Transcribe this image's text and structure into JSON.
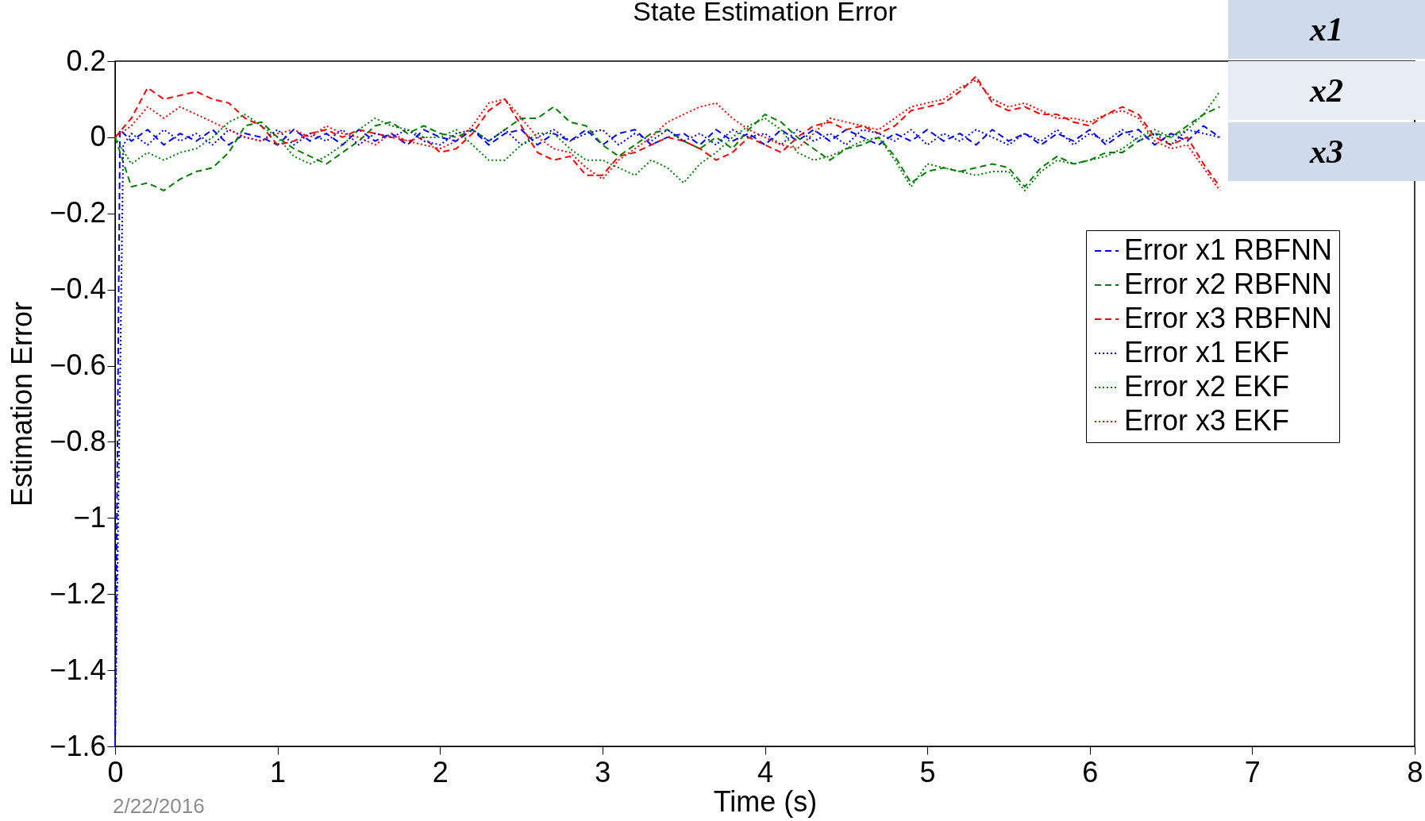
{
  "chart_data": {
    "type": "line",
    "title": "State Estimation Error",
    "xlabel": "Time (s)",
    "ylabel": "Estimation Error",
    "xlim": [
      0,
      8
    ],
    "xticks": [
      0,
      1,
      2,
      3,
      4,
      5,
      6,
      7,
      8
    ],
    "ylim": [
      -1.6,
      0.2
    ],
    "yticks": [
      0.2,
      0,
      -0.2,
      -0.4,
      -0.6,
      -0.8,
      -1,
      -1.2,
      -1.4,
      -1.6
    ],
    "grid": false,
    "legend": "top right",
    "annotations": [
      "x1",
      "x2",
      "x3",
      "2/22/2016"
    ],
    "x": [
      0,
      0.1,
      0.2,
      0.3,
      0.4,
      0.5,
      0.6,
      0.7,
      0.8,
      0.9,
      1,
      1.1,
      1.2,
      1.3,
      1.4,
      1.5,
      1.6,
      1.7,
      1.8,
      1.9,
      2,
      2.1,
      2.2,
      2.3,
      2.4,
      2.5,
      2.6,
      2.7,
      2.8,
      2.9,
      3,
      3.1,
      3.2,
      3.3,
      3.4,
      3.5,
      3.6,
      3.7,
      3.8,
      3.9,
      4,
      4.1,
      4.2,
      4.3,
      4.4,
      4.5,
      4.6,
      4.7,
      4.8,
      4.9,
      5,
      5.1,
      5.2,
      5.3,
      5.4,
      5.5,
      5.6,
      5.7,
      5.8,
      5.9,
      6,
      6.1,
      6.2,
      6.3,
      6.4,
      6.5,
      6.6,
      6.7,
      6.8
    ],
    "series": [
      {
        "name": "Error x1 RBFNN",
        "color": "#0000ff",
        "line_style": "dashed",
        "x": [
          0,
          0.03,
          0.1,
          0.2,
          0.3,
          0.4,
          0.5,
          0.6,
          0.7,
          0.8,
          0.9,
          1,
          1.1,
          1.2,
          1.3,
          1.4,
          1.5,
          1.6,
          1.7,
          1.8,
          1.9,
          2,
          2.1,
          2.2,
          2.3,
          2.4,
          2.5,
          2.6,
          2.7,
          2.8,
          2.9,
          3,
          3.1,
          3.2,
          3.3,
          3.4,
          3.5,
          3.6,
          3.7,
          3.8,
          3.9,
          4,
          4.1,
          4.2,
          4.3,
          4.4,
          4.5,
          4.6,
          4.7,
          4.8,
          4.9,
          5,
          5.1,
          5.2,
          5.3,
          5.4,
          5.5,
          5.6,
          5.7,
          5.8,
          5.9,
          6,
          6.1,
          6.2,
          6.3,
          6.4,
          6.5,
          6.6,
          6.7,
          6.8
        ],
        "values": [
          -1.6,
          0.02,
          -0.01,
          0.02,
          -0.02,
          0.01,
          -0.01,
          0.02,
          -0.02,
          0.01,
          0.0,
          -0.02,
          0.02,
          -0.01,
          0.01,
          -0.02,
          0.02,
          -0.01,
          0.01,
          -0.02,
          0.02,
          0.0,
          -0.01,
          0.02,
          -0.02,
          0.01,
          0.02,
          -0.02,
          0.01,
          -0.01,
          0.02,
          -0.02,
          0.01,
          0.02,
          -0.02,
          0.0,
          0.01,
          -0.02,
          0.02,
          -0.01,
          0.01,
          -0.02,
          0.02,
          -0.01,
          0.02,
          -0.01,
          0.02,
          0.0,
          -0.02,
          0.01,
          -0.01,
          0.02,
          -0.01,
          0.01,
          -0.02,
          0.02,
          -0.01,
          0.01,
          -0.02,
          0.01,
          -0.01,
          0.02,
          -0.02,
          0.01,
          0.02,
          -0.02,
          0.01,
          -0.01,
          0.03,
          0.0
        ]
      },
      {
        "name": "Error x2 RBFNN",
        "color": "#008000",
        "line_style": "dashed",
        "values": [
          0,
          -0.13,
          -0.12,
          -0.14,
          -0.11,
          -0.09,
          -0.08,
          -0.04,
          0.03,
          0.04,
          0.0,
          -0.03,
          -0.05,
          -0.07,
          -0.04,
          -0.01,
          0.03,
          0.04,
          0.01,
          0.03,
          0.01,
          0.0,
          0.02,
          -0.01,
          0.02,
          0.05,
          0.05,
          0.08,
          0.04,
          0.03,
          -0.02,
          -0.05,
          -0.02,
          0.01,
          0.02,
          -0.01,
          -0.03,
          0.0,
          -0.03,
          0.02,
          0.06,
          0.04,
          0.0,
          -0.03,
          -0.06,
          -0.03,
          -0.02,
          0.0,
          -0.05,
          -0.12,
          -0.09,
          -0.08,
          -0.09,
          -0.08,
          -0.07,
          -0.08,
          -0.13,
          -0.08,
          -0.05,
          -0.07,
          -0.06,
          -0.04,
          -0.04,
          -0.01,
          0.01,
          0.0,
          0.03,
          0.06,
          0.08
        ]
      },
      {
        "name": "Error x3 RBFNN",
        "color": "#ff0000",
        "line_style": "dashed",
        "values": [
          0,
          0.05,
          0.13,
          0.1,
          0.11,
          0.12,
          0.1,
          0.09,
          0.05,
          0.03,
          -0.02,
          -0.01,
          0.01,
          0.02,
          0.0,
          0.02,
          0.01,
          0.0,
          -0.01,
          0.0,
          -0.04,
          -0.03,
          0.01,
          0.07,
          0.1,
          0.03,
          -0.04,
          -0.06,
          -0.05,
          -0.1,
          -0.1,
          -0.05,
          -0.04,
          -0.02,
          0.0,
          -0.01,
          -0.03,
          -0.06,
          -0.04,
          0.0,
          -0.02,
          -0.04,
          0.0,
          0.03,
          0.04,
          0.02,
          0.03,
          0.01,
          0.03,
          0.07,
          0.08,
          0.09,
          0.12,
          0.16,
          0.09,
          0.07,
          0.08,
          0.06,
          0.06,
          0.04,
          0.03,
          0.06,
          0.08,
          0.06,
          0.0,
          -0.02,
          0.0,
          -0.07,
          -0.13
        ]
      },
      {
        "name": "Error x1 EKF",
        "color": "#0000ff",
        "line_style": "dotted",
        "x": [
          0,
          0.05,
          0.1,
          0.2,
          0.3,
          0.4,
          0.5,
          0.6,
          0.7,
          0.8,
          0.9,
          1,
          1.1,
          1.2,
          1.3,
          1.4,
          1.5,
          1.6,
          1.7,
          1.8,
          1.9,
          2,
          2.1,
          2.2,
          2.3,
          2.4,
          2.5,
          2.6,
          2.7,
          2.8,
          2.9,
          3,
          3.1,
          3.2,
          3.3,
          3.4,
          3.5,
          3.6,
          3.7,
          3.8,
          3.9,
          4,
          4.1,
          4.2,
          4.3,
          4.4,
          4.5,
          4.6,
          4.7,
          4.8,
          4.9,
          5,
          5.1,
          5.2,
          5.3,
          5.4,
          5.5,
          5.6,
          5.7,
          5.8,
          5.9,
          6,
          6.1,
          6.2,
          6.3,
          6.4,
          6.5,
          6.6,
          6.7,
          6.8
        ],
        "values": [
          -1.6,
          -0.02,
          0.01,
          -0.02,
          0.02,
          -0.01,
          0.01,
          -0.02,
          0.02,
          0.0,
          -0.01,
          0.02,
          -0.02,
          0.01,
          -0.01,
          0.02,
          -0.02,
          0.01,
          0.0,
          0.02,
          -0.01,
          -0.02,
          0.01,
          0.02,
          -0.01,
          0.02,
          -0.02,
          0.0,
          0.02,
          -0.01,
          0.01,
          0.02,
          -0.02,
          0.01,
          -0.01,
          0.02,
          -0.01,
          0.01,
          -0.02,
          0.02,
          0.0,
          0.01,
          -0.02,
          0.02,
          -0.01,
          0.01,
          -0.02,
          0.02,
          0.01,
          -0.01,
          0.02,
          -0.02,
          0.01,
          -0.01,
          0.02,
          0.0,
          -0.02,
          0.01,
          -0.01,
          0.02,
          -0.02,
          0.01,
          -0.01,
          0.02,
          -0.01,
          0.01,
          -0.02,
          0.02,
          0.01,
          0.0
        ]
      },
      {
        "name": "Error x2 EKF",
        "color": "#008000",
        "line_style": "dotted",
        "values": [
          0,
          -0.07,
          -0.04,
          -0.06,
          -0.04,
          -0.03,
          0.0,
          0.04,
          0.06,
          0.03,
          0.0,
          -0.05,
          -0.07,
          -0.05,
          -0.02,
          0.02,
          0.05,
          0.03,
          0.02,
          0.0,
          0.0,
          0.02,
          -0.02,
          -0.06,
          -0.06,
          -0.02,
          0.01,
          0.01,
          -0.03,
          -0.06,
          -0.06,
          -0.08,
          -0.1,
          -0.06,
          -0.08,
          -0.12,
          -0.07,
          -0.04,
          0.0,
          0.03,
          0.05,
          0.02,
          -0.04,
          -0.06,
          -0.05,
          -0.03,
          -0.01,
          0.0,
          -0.06,
          -0.13,
          -0.07,
          -0.08,
          -0.09,
          -0.1,
          -0.09,
          -0.09,
          -0.14,
          -0.09,
          -0.06,
          -0.07,
          -0.06,
          -0.05,
          -0.03,
          0.0,
          0.02,
          0.0,
          0.02,
          0.06,
          0.12
        ]
      },
      {
        "name": "Error x3 EKF",
        "color": "#ff0000",
        "line_style": "dotted",
        "values": [
          0,
          0.03,
          0.08,
          0.05,
          0.08,
          0.06,
          0.04,
          0.02,
          0.0,
          -0.01,
          0.01,
          0.02,
          0.0,
          0.03,
          0.01,
          0.0,
          -0.02,
          0.01,
          -0.01,
          -0.02,
          -0.03,
          -0.01,
          0.03,
          0.09,
          0.1,
          0.05,
          0.0,
          -0.03,
          -0.04,
          -0.08,
          -0.11,
          -0.06,
          -0.03,
          0.0,
          0.04,
          0.06,
          0.08,
          0.09,
          0.05,
          0.02,
          0.0,
          -0.02,
          -0.03,
          0.01,
          0.05,
          0.04,
          0.03,
          0.02,
          0.05,
          0.08,
          0.09,
          0.1,
          0.13,
          0.15,
          0.1,
          0.08,
          0.09,
          0.07,
          0.05,
          0.05,
          0.04,
          0.06,
          0.07,
          0.05,
          -0.01,
          -0.03,
          -0.02,
          -0.08,
          -0.14
        ]
      }
    ]
  }
}
